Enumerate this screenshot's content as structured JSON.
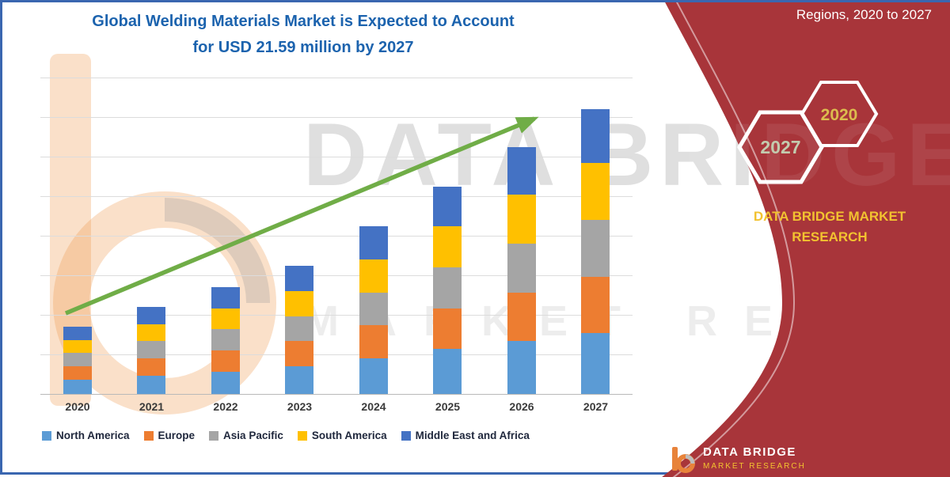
{
  "title": {
    "line1": "Global Welding Materials Market is Expected to Account",
    "line2": "for USD 21.59 million by 2027"
  },
  "watermark": {
    "big_text": "DATA BRIDGE",
    "spaced_text": "MARKET RESEARCH"
  },
  "right_panel": {
    "header": "Regions, 2020 to 2027",
    "hexagon_left": "2027",
    "hexagon_right": "2020",
    "brand_line1": "DATA BRIDGE MARKET",
    "brand_line2": "RESEARCH",
    "footer_brand": "DATA BRIDGE",
    "footer_sub": "MARKET RESEARCH",
    "bg_color": "#a8353a",
    "brand_text_color": "#f2c230",
    "hex_2027_text_color": "#c3cbae",
    "hex_2020_text_color": "#dcbc4e"
  },
  "chart_data": {
    "type": "bar",
    "stacked": true,
    "title": "Global Welding Materials Market is Expected to Account for USD 21.59 million by 2027",
    "unit": "USD million",
    "categories": [
      "2020",
      "2021",
      "2022",
      "2023",
      "2024",
      "2025",
      "2026",
      "2027"
    ],
    "series": [
      {
        "name": "North America",
        "color": "#5b9bd5",
        "values": [
          1.1,
          1.4,
          1.7,
          2.1,
          2.7,
          3.4,
          4.0,
          4.6
        ]
      },
      {
        "name": "Europe",
        "color": "#ed7d31",
        "values": [
          1.0,
          1.3,
          1.6,
          1.9,
          2.5,
          3.1,
          3.7,
          4.3
        ]
      },
      {
        "name": "Asia Pacific",
        "color": "#a5a5a5",
        "values": [
          1.0,
          1.3,
          1.6,
          1.9,
          2.5,
          3.1,
          3.7,
          4.3
        ]
      },
      {
        "name": "South America",
        "color": "#ffc000",
        "values": [
          1.0,
          1.3,
          1.6,
          1.9,
          2.5,
          3.1,
          3.7,
          4.3
        ]
      },
      {
        "name": "Middle East and Africa",
        "color": "#4472c4",
        "values": [
          1.0,
          1.3,
          1.6,
          1.9,
          2.5,
          3.0,
          3.6,
          4.09
        ]
      }
    ],
    "ylim": [
      0,
      24
    ],
    "gridline_step": 3,
    "grid": true,
    "legend_position": "bottom",
    "trend_arrow": true,
    "trend_arrow_color": "#70ad47"
  }
}
